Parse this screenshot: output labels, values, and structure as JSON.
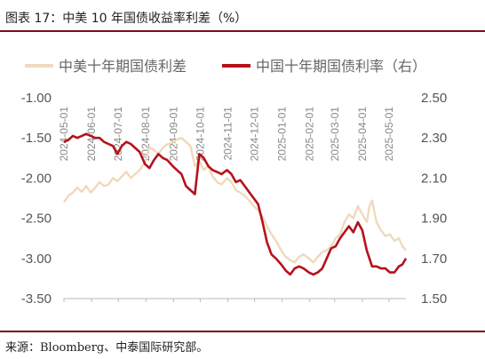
{
  "caption": "图表 17：中美 10 年国债收益率利差（%）",
  "source": "来源：Bloomberg、中泰国际研究部。",
  "chart_data": {
    "type": "line",
    "title": "",
    "legend": [
      {
        "name": "中美十年期国债利差",
        "color": "#f0d9bd",
        "axis": "left"
      },
      {
        "name": "中国十年期国债利率（右）",
        "color": "#b5121b",
        "axis": "right"
      }
    ],
    "legend_placement": "top",
    "grid": false,
    "y_left": {
      "ticks": [
        "-1.00",
        "-1.50",
        "-2.00",
        "-2.50",
        "-3.00",
        "-3.50"
      ],
      "range": [
        -3.5,
        -1.0
      ]
    },
    "y_right": {
      "ticks": [
        "2.50",
        "2.30",
        "2.10",
        "1.90",
        "1.70",
        "1.50"
      ],
      "range": [
        1.5,
        2.5
      ]
    },
    "x_labels": [
      "2024-05-01",
      "2024-06-01",
      "2024-07-01",
      "2024-08-01",
      "2024-09-01",
      "2024-10-01",
      "2024-11-01",
      "2024-12-01",
      "2025-01-01",
      "2025-02-01",
      "2025-03-01",
      "2025-04-01",
      "2025-05-01"
    ],
    "x_range": [
      "2024-05-01",
      "2025-05-20"
    ],
    "series": [
      {
        "name": "中美十年期国债利差",
        "axis": "left",
        "points": [
          [
            "2024-05-01",
            -2.3
          ],
          [
            "2024-05-06",
            -2.22
          ],
          [
            "2024-05-11",
            -2.18
          ],
          [
            "2024-05-16",
            -2.12
          ],
          [
            "2024-05-21",
            -2.17
          ],
          [
            "2024-05-26",
            -2.1
          ],
          [
            "2024-05-31",
            -2.18
          ],
          [
            "2024-06-05",
            -2.12
          ],
          [
            "2024-06-10",
            -2.05
          ],
          [
            "2024-06-15",
            -2.1
          ],
          [
            "2024-06-20",
            -2.08
          ],
          [
            "2024-06-25",
            -2.0
          ],
          [
            "2024-06-30",
            -2.04
          ],
          [
            "2024-07-05",
            -1.98
          ],
          [
            "2024-07-10",
            -1.92
          ],
          [
            "2024-07-15",
            -2.0
          ],
          [
            "2024-07-20",
            -1.95
          ],
          [
            "2024-07-25",
            -1.9
          ],
          [
            "2024-07-31",
            -1.8
          ],
          [
            "2024-08-05",
            -1.62
          ],
          [
            "2024-08-10",
            -1.65
          ],
          [
            "2024-08-15",
            -1.7
          ],
          [
            "2024-08-20",
            -1.62
          ],
          [
            "2024-08-25",
            -1.58
          ],
          [
            "2024-08-31",
            -1.56
          ],
          [
            "2024-09-05",
            -1.52
          ],
          [
            "2024-09-10",
            -1.5
          ],
          [
            "2024-09-15",
            -1.55
          ],
          [
            "2024-09-20",
            -1.6
          ],
          [
            "2024-09-25",
            -1.85
          ],
          [
            "2024-09-30",
            -1.78
          ],
          [
            "2024-10-05",
            -1.9
          ],
          [
            "2024-10-10",
            -1.85
          ],
          [
            "2024-10-15",
            -1.98
          ],
          [
            "2024-10-20",
            -2.05
          ],
          [
            "2024-10-25",
            -2.08
          ],
          [
            "2024-10-31",
            -2.0
          ],
          [
            "2024-11-05",
            -2.05
          ],
          [
            "2024-11-10",
            -2.15
          ],
          [
            "2024-11-15",
            -2.18
          ],
          [
            "2024-11-20",
            -2.22
          ],
          [
            "2024-11-25",
            -2.28
          ],
          [
            "2024-11-30",
            -2.35
          ],
          [
            "2024-12-05",
            -2.4
          ],
          [
            "2024-12-10",
            -2.48
          ],
          [
            "2024-12-15",
            -2.6
          ],
          [
            "2024-12-20",
            -2.7
          ],
          [
            "2024-12-25",
            -2.78
          ],
          [
            "2024-12-31",
            -2.9
          ],
          [
            "2025-01-05",
            -2.98
          ],
          [
            "2025-01-10",
            -3.02
          ],
          [
            "2025-01-15",
            -3.05
          ],
          [
            "2025-01-20",
            -2.98
          ],
          [
            "2025-01-25",
            -2.95
          ],
          [
            "2025-01-31",
            -3.0
          ],
          [
            "2025-02-05",
            -3.05
          ],
          [
            "2025-02-10",
            -2.98
          ],
          [
            "2025-02-15",
            -2.92
          ],
          [
            "2025-02-20",
            -2.9
          ],
          [
            "2025-02-25",
            -2.85
          ],
          [
            "2025-03-02",
            -2.75
          ],
          [
            "2025-03-07",
            -2.7
          ],
          [
            "2025-03-12",
            -2.55
          ],
          [
            "2025-03-17",
            -2.45
          ],
          [
            "2025-03-22",
            -2.5
          ],
          [
            "2025-03-27",
            -2.35
          ],
          [
            "2025-04-01",
            -2.45
          ],
          [
            "2025-04-06",
            -2.55
          ],
          [
            "2025-04-09",
            -2.35
          ],
          [
            "2025-04-12",
            -2.28
          ],
          [
            "2025-04-17",
            -2.55
          ],
          [
            "2025-04-22",
            -2.65
          ],
          [
            "2025-04-27",
            -2.72
          ],
          [
            "2025-05-02",
            -2.7
          ],
          [
            "2025-05-07",
            -2.78
          ],
          [
            "2025-05-12",
            -2.75
          ],
          [
            "2025-05-16",
            -2.85
          ],
          [
            "2025-05-20",
            -2.9
          ]
        ]
      },
      {
        "name": "中国十年期国债利率（右）",
        "axis": "right",
        "points": [
          [
            "2024-05-01",
            2.28
          ],
          [
            "2024-05-06",
            2.29
          ],
          [
            "2024-05-11",
            2.31
          ],
          [
            "2024-05-16",
            2.3
          ],
          [
            "2024-05-21",
            2.31
          ],
          [
            "2024-05-26",
            2.32
          ],
          [
            "2024-05-31",
            2.31
          ],
          [
            "2024-06-05",
            2.3
          ],
          [
            "2024-06-10",
            2.3
          ],
          [
            "2024-06-15",
            2.28
          ],
          [
            "2024-06-20",
            2.27
          ],
          [
            "2024-06-25",
            2.26
          ],
          [
            "2024-06-30",
            2.22
          ],
          [
            "2024-07-05",
            2.26
          ],
          [
            "2024-07-10",
            2.28
          ],
          [
            "2024-07-15",
            2.27
          ],
          [
            "2024-07-20",
            2.25
          ],
          [
            "2024-07-25",
            2.23
          ],
          [
            "2024-07-31",
            2.17
          ],
          [
            "2024-08-05",
            2.15
          ],
          [
            "2024-08-10",
            2.19
          ],
          [
            "2024-08-15",
            2.22
          ],
          [
            "2024-08-20",
            2.2
          ],
          [
            "2024-08-25",
            2.19
          ],
          [
            "2024-08-31",
            2.16
          ],
          [
            "2024-09-05",
            2.14
          ],
          [
            "2024-09-10",
            2.12
          ],
          [
            "2024-09-15",
            2.06
          ],
          [
            "2024-09-20",
            2.04
          ],
          [
            "2024-09-25",
            2.02
          ],
          [
            "2024-09-30",
            2.22
          ],
          [
            "2024-10-05",
            2.2
          ],
          [
            "2024-10-10",
            2.16
          ],
          [
            "2024-10-15",
            2.14
          ],
          [
            "2024-10-20",
            2.13
          ],
          [
            "2024-10-25",
            2.12
          ],
          [
            "2024-10-31",
            2.14
          ],
          [
            "2024-11-05",
            2.12
          ],
          [
            "2024-11-10",
            2.08
          ],
          [
            "2024-11-15",
            2.09
          ],
          [
            "2024-11-20",
            2.06
          ],
          [
            "2024-11-25",
            2.03
          ],
          [
            "2024-11-30",
            2.0
          ],
          [
            "2024-12-05",
            1.97
          ],
          [
            "2024-12-10",
            1.88
          ],
          [
            "2024-12-15",
            1.78
          ],
          [
            "2024-12-20",
            1.72
          ],
          [
            "2024-12-25",
            1.7
          ],
          [
            "2024-12-31",
            1.67
          ],
          [
            "2025-01-05",
            1.64
          ],
          [
            "2025-01-10",
            1.62
          ],
          [
            "2025-01-15",
            1.65
          ],
          [
            "2025-01-20",
            1.66
          ],
          [
            "2025-01-25",
            1.65
          ],
          [
            "2025-01-31",
            1.63
          ],
          [
            "2025-02-05",
            1.62
          ],
          [
            "2025-02-10",
            1.63
          ],
          [
            "2025-02-15",
            1.65
          ],
          [
            "2025-02-20",
            1.7
          ],
          [
            "2025-02-25",
            1.75
          ],
          [
            "2025-03-02",
            1.76
          ],
          [
            "2025-03-07",
            1.8
          ],
          [
            "2025-03-12",
            1.83
          ],
          [
            "2025-03-17",
            1.86
          ],
          [
            "2025-03-22",
            1.83
          ],
          [
            "2025-03-27",
            1.88
          ],
          [
            "2025-04-01",
            1.84
          ],
          [
            "2025-04-06",
            1.74
          ],
          [
            "2025-04-09",
            1.7
          ],
          [
            "2025-04-12",
            1.66
          ],
          [
            "2025-04-17",
            1.66
          ],
          [
            "2025-04-22",
            1.65
          ],
          [
            "2025-04-27",
            1.65
          ],
          [
            "2025-05-02",
            1.63
          ],
          [
            "2025-05-07",
            1.63
          ],
          [
            "2025-05-12",
            1.66
          ],
          [
            "2025-05-16",
            1.67
          ],
          [
            "2025-05-20",
            1.7
          ]
        ]
      }
    ]
  }
}
